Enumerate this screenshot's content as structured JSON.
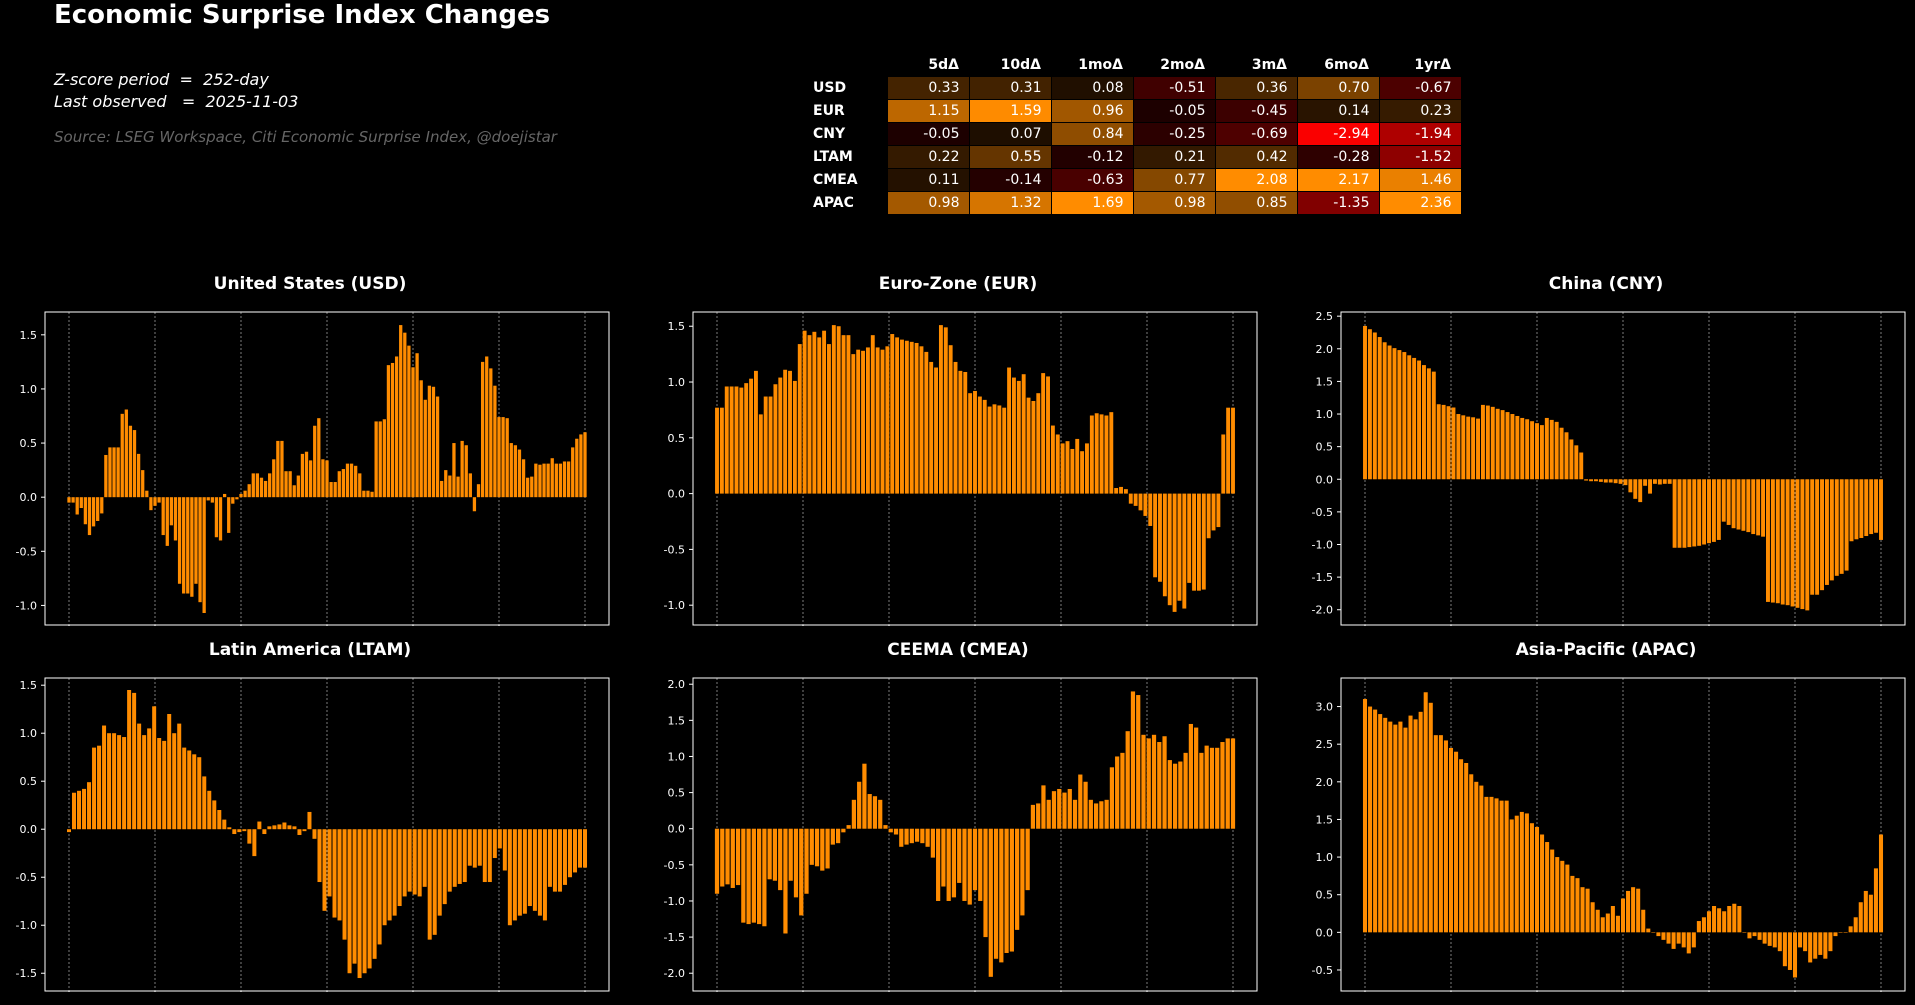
{
  "page": {
    "title": "Economic Surprise Index Changes",
    "meta_line1": "Z-score period  =  252-day",
    "meta_line2": "Last observed   =  2025-11-03",
    "source": "Source: LSEG Workspace, Citi Economic Surprise Index, @doejistar"
  },
  "colors": {
    "bar": "#ff8c00",
    "background": "#000000",
    "frame": "#ffffff",
    "grid": "#999999"
  },
  "table": {
    "columns": [
      "5dΔ",
      "10dΔ",
      "1moΔ",
      "2moΔ",
      "3mΔ",
      "6moΔ",
      "1yrΔ"
    ],
    "rows": [
      {
        "label": "USD",
        "values": [
          "0.33",
          "0.31",
          "0.08",
          "-0.51",
          "0.36",
          "0.70",
          "-0.67"
        ]
      },
      {
        "label": "EUR",
        "values": [
          "1.15",
          "1.59",
          "0.96",
          "-0.05",
          "-0.45",
          "0.14",
          "0.23"
        ]
      },
      {
        "label": "CNY",
        "values": [
          "-0.05",
          "0.07",
          "0.84",
          "-0.25",
          "-0.69",
          "-2.94",
          "-1.94"
        ]
      },
      {
        "label": "LTAM",
        "values": [
          "0.22",
          "0.55",
          "-0.12",
          "0.21",
          "0.42",
          "-0.28",
          "-1.52"
        ]
      },
      {
        "label": "CMEA",
        "values": [
          "0.11",
          "-0.14",
          "-0.63",
          "0.77",
          "2.08",
          "2.17",
          "1.46"
        ]
      },
      {
        "label": "APAC",
        "values": [
          "0.98",
          "1.32",
          "1.69",
          "0.98",
          "0.85",
          "-1.35",
          "2.36"
        ]
      }
    ]
  },
  "chart_data": [
    {
      "type": "bar",
      "title": "United States (USD)",
      "xlabel": "",
      "ylabel": "",
      "x_ticks": [
        "-126",
        "-105",
        "-84",
        "-63",
        "-42",
        "-21",
        "Last"
      ],
      "y_ticks": [
        -1.0,
        -0.5,
        0.0,
        0.5,
        1.0,
        1.5
      ],
      "ylim": [
        -1.07,
        1.6
      ],
      "grid": "x-dotted",
      "values": [
        -0.05,
        -0.05,
        -0.16,
        -0.1,
        -0.25,
        -0.35,
        -0.27,
        -0.22,
        -0.15,
        0.39,
        0.46,
        0.46,
        0.46,
        0.77,
        0.81,
        0.66,
        0.62,
        0.4,
        0.25,
        0.06,
        -0.12,
        -0.08,
        -0.05,
        -0.35,
        -0.45,
        -0.26,
        -0.4,
        -0.8,
        -0.89,
        -0.89,
        -0.92,
        -0.8,
        -0.97,
        -1.07,
        -0.03,
        -0.05,
        -0.37,
        -0.4,
        0.03,
        -0.33,
        -0.06,
        -0.02,
        0.03,
        0.06,
        0.12,
        0.22,
        0.22,
        0.18,
        0.15,
        0.22,
        0.35,
        0.52,
        0.52,
        0.24,
        0.24,
        0.11,
        0.2,
        0.4,
        0.42,
        0.34,
        0.66,
        0.73,
        0.35,
        0.34,
        0.14,
        0.14,
        0.24,
        0.26,
        0.31,
        0.31,
        0.29,
        0.22,
        0.06,
        0.06,
        0.05,
        0.7,
        0.7,
        0.72,
        1.22,
        1.24,
        1.3,
        1.59,
        1.52,
        1.4,
        1.2,
        1.33,
        1.08,
        0.9,
        1.03,
        1.02,
        0.93,
        0.15,
        0.25,
        0.2,
        0.5,
        0.19,
        0.52,
        0.48,
        0.22,
        -0.13,
        0.12,
        1.25,
        1.3,
        1.19,
        1.03,
        0.74,
        0.74,
        0.73,
        0.5,
        0.48,
        0.44,
        0.35,
        0.18,
        0.19,
        0.31,
        0.3,
        0.31,
        0.31,
        0.36,
        0.31,
        0.31,
        0.33,
        0.33,
        0.46,
        0.54,
        0.58,
        0.6
      ]
    },
    {
      "type": "bar",
      "title": "Euro-Zone (EUR)",
      "xlabel": "",
      "ylabel": "",
      "x_ticks": [
        "-126",
        "-105",
        "-84",
        "-63",
        "-42",
        "-21",
        "Last"
      ],
      "y_ticks": [
        -1.0,
        -0.5,
        0.0,
        0.5,
        1.0,
        1.5
      ],
      "ylim": [
        -1.07,
        1.52
      ],
      "grid": "x-dotted",
      "values": [
        0.77,
        0.77,
        0.96,
        0.96,
        0.96,
        0.95,
        0.99,
        1.03,
        1.1,
        0.71,
        0.87,
        0.87,
        0.98,
        1.04,
        1.11,
        1.1,
        1.01,
        1.34,
        1.46,
        1.42,
        1.45,
        1.4,
        1.46,
        1.34,
        1.51,
        1.5,
        1.42,
        1.42,
        1.25,
        1.29,
        1.28,
        1.31,
        1.42,
        1.31,
        1.29,
        1.32,
        1.43,
        1.4,
        1.38,
        1.37,
        1.36,
        1.35,
        1.32,
        1.27,
        1.18,
        1.13,
        1.51,
        1.49,
        1.33,
        1.18,
        1.1,
        1.09,
        0.9,
        0.92,
        0.87,
        0.84,
        0.78,
        0.8,
        0.79,
        0.77,
        1.13,
        1.04,
        1.01,
        1.07,
        0.86,
        0.83,
        0.9,
        1.08,
        1.05,
        0.61,
        0.53,
        0.45,
        0.47,
        0.4,
        0.49,
        0.38,
        0.45,
        0.7,
        0.72,
        0.71,
        0.7,
        0.73,
        0.05,
        0.06,
        0.04,
        -0.09,
        -0.11,
        -0.15,
        -0.2,
        -0.29,
        -0.75,
        -0.79,
        -0.92,
        -1.0,
        -1.06,
        -0.96,
        -1.03,
        -0.8,
        -0.87,
        -0.87,
        -0.86,
        -0.4,
        -0.33,
        -0.3,
        0.53,
        0.77,
        0.77
      ]
    },
    {
      "type": "bar",
      "title": "China (CNY)",
      "xlabel": "",
      "ylabel": "",
      "x_ticks": [
        "-126",
        "-105",
        "-84",
        "-63",
        "-42",
        "-21",
        "Last"
      ],
      "y_ticks": [
        -2.0,
        -1.5,
        -1.0,
        -0.5,
        0.0,
        0.5,
        1.0,
        1.5,
        2.0,
        2.5
      ],
      "ylim": [
        -2.05,
        2.38
      ],
      "grid": "x-dotted",
      "values": [
        2.35,
        2.3,
        2.25,
        2.18,
        2.1,
        2.05,
        2.01,
        1.98,
        1.95,
        1.9,
        1.86,
        1.82,
        1.75,
        1.7,
        1.65,
        1.15,
        1.14,
        1.12,
        1.1,
        1.0,
        0.98,
        0.96,
        0.95,
        0.93,
        1.14,
        1.13,
        1.11,
        1.08,
        1.06,
        1.03,
        1.0,
        0.97,
        0.94,
        0.92,
        0.89,
        0.86,
        0.83,
        0.94,
        0.91,
        0.88,
        0.79,
        0.72,
        0.61,
        0.52,
        0.41,
        -0.02,
        -0.03,
        -0.03,
        -0.04,
        -0.05,
        -0.05,
        -0.06,
        -0.07,
        -0.09,
        -0.2,
        -0.3,
        -0.35,
        -0.1,
        -0.22,
        -0.07,
        -0.08,
        -0.07,
        -0.07,
        -1.05,
        -1.05,
        -1.05,
        -1.04,
        -1.03,
        -1.02,
        -1.0,
        -0.98,
        -0.96,
        -0.93,
        -0.65,
        -0.7,
        -0.75,
        -0.77,
        -0.79,
        -0.81,
        -0.84,
        -0.86,
        -0.88,
        -1.88,
        -1.89,
        -1.9,
        -1.92,
        -1.93,
        -1.95,
        -1.97,
        -1.99,
        -2.01,
        -1.77,
        -1.77,
        -1.7,
        -1.62,
        -1.55,
        -1.48,
        -1.45,
        -1.4,
        -0.95,
        -0.92,
        -0.9,
        -0.87,
        -0.84,
        -0.82,
        -0.93
      ]
    },
    {
      "type": "bar",
      "title": "Latin America (LTAM)",
      "xlabel": "",
      "ylabel": "",
      "x_ticks": [
        "-126",
        "-105",
        "-84",
        "-63",
        "-42",
        "-21",
        "Last"
      ],
      "y_ticks": [
        -1.5,
        -1.0,
        -0.5,
        0.0,
        0.5,
        1.0,
        1.5
      ],
      "ylim": [
        -1.56,
        1.45
      ],
      "grid": "x-dotted",
      "values": [
        -0.03,
        0.38,
        0.4,
        0.42,
        0.49,
        0.85,
        0.87,
        1.08,
        1.0,
        1.0,
        0.98,
        0.96,
        1.45,
        1.42,
        1.1,
        0.98,
        1.05,
        1.28,
        0.95,
        0.92,
        1.2,
        1.0,
        1.1,
        0.85,
        0.82,
        0.78,
        0.75,
        0.55,
        0.4,
        0.3,
        0.2,
        0.1,
        0.02,
        -0.05,
        -0.03,
        -0.02,
        -0.15,
        -0.28,
        0.08,
        -0.05,
        0.03,
        0.04,
        0.05,
        0.07,
        0.04,
        0.03,
        -0.06,
        -0.02,
        0.18,
        -0.1,
        -0.55,
        -0.85,
        -0.7,
        -0.92,
        -0.95,
        -1.15,
        -1.5,
        -1.4,
        -1.55,
        -1.5,
        -1.45,
        -1.35,
        -1.2,
        -1.0,
        -0.95,
        -0.9,
        -0.8,
        -0.7,
        -0.65,
        -0.68,
        -0.7,
        -0.6,
        -1.15,
        -1.1,
        -0.9,
        -0.78,
        -0.65,
        -0.6,
        -0.57,
        -0.55,
        -0.38,
        -0.4,
        -0.38,
        -0.55,
        -0.55,
        -0.3,
        -0.2,
        -0.43,
        -1.0,
        -0.95,
        -0.9,
        -0.88,
        -0.8,
        -0.85,
        -0.9,
        -0.95,
        -0.6,
        -0.65,
        -0.65,
        -0.58,
        -0.5,
        -0.45,
        -0.4,
        -0.4
      ]
    },
    {
      "type": "bar",
      "title": "CEEMA (CMEA)",
      "xlabel": "",
      "ylabel": "",
      "x_ticks": [
        "-126",
        "-105",
        "-84",
        "-63",
        "-42",
        "-21",
        "Last"
      ],
      "y_ticks": [
        -2.0,
        -1.5,
        -1.0,
        -0.5,
        0.0,
        0.5,
        1.0,
        1.5,
        2.0
      ],
      "ylim": [
        -2.08,
        1.92
      ],
      "grid": "x-dotted",
      "values": [
        -0.9,
        -0.8,
        -0.77,
        -0.82,
        -0.78,
        -1.3,
        -1.32,
        -1.3,
        -1.32,
        -1.35,
        -0.7,
        -0.72,
        -0.85,
        -1.45,
        -0.72,
        -0.95,
        -1.2,
        -0.9,
        -0.5,
        -0.52,
        -0.58,
        -0.55,
        -0.22,
        -0.2,
        -0.05,
        0.05,
        0.4,
        0.65,
        0.9,
        0.48,
        0.45,
        0.4,
        0.05,
        -0.05,
        -0.08,
        -0.25,
        -0.22,
        -0.2,
        -0.18,
        -0.2,
        -0.25,
        -0.4,
        -1.0,
        -0.8,
        -1.0,
        -0.95,
        -0.75,
        -1.0,
        -1.05,
        -0.85,
        -1.0,
        -1.5,
        -2.05,
        -1.8,
        -1.85,
        -1.72,
        -1.7,
        -1.4,
        -1.2,
        -0.85,
        0.33,
        0.35,
        0.6,
        0.4,
        0.52,
        0.55,
        0.5,
        0.55,
        0.4,
        0.75,
        0.65,
        0.4,
        0.35,
        0.38,
        0.4,
        0.85,
        1.0,
        1.05,
        1.35,
        1.9,
        1.85,
        1.3,
        1.25,
        1.3,
        1.2,
        1.28,
        0.95,
        0.9,
        0.93,
        1.05,
        1.45,
        1.4,
        1.05,
        1.15,
        1.12,
        1.12,
        1.2,
        1.25,
        1.25
      ]
    },
    {
      "type": "bar",
      "title": "Asia-Pacific (APAC)",
      "xlabel": "",
      "ylabel": "",
      "x_ticks": [
        "-126",
        "-105",
        "-84",
        "-63",
        "-42",
        "-21",
        "Last"
      ],
      "y_ticks": [
        -0.5,
        0.0,
        0.5,
        1.0,
        1.5,
        2.0,
        2.5,
        3.0
      ],
      "ylim": [
        -0.62,
        3.22
      ],
      "grid": "x-dotted",
      "values": [
        3.1,
        3.0,
        2.96,
        2.9,
        2.85,
        2.8,
        2.76,
        2.8,
        2.72,
        2.88,
        2.83,
        2.93,
        3.19,
        3.05,
        2.62,
        2.62,
        2.55,
        2.45,
        2.4,
        2.3,
        2.25,
        2.1,
        2.0,
        1.95,
        1.8,
        1.8,
        1.78,
        1.75,
        1.75,
        1.5,
        1.55,
        1.6,
        1.58,
        1.45,
        1.4,
        1.3,
        1.2,
        1.1,
        1.0,
        0.95,
        0.9,
        0.75,
        0.72,
        0.6,
        0.58,
        0.4,
        0.3,
        0.2,
        0.25,
        0.35,
        0.22,
        0.45,
        0.55,
        0.6,
        0.58,
        0.3,
        0.05,
        0.0,
        -0.05,
        -0.1,
        -0.15,
        -0.22,
        -0.15,
        -0.2,
        -0.28,
        -0.2,
        0.15,
        0.2,
        0.28,
        0.35,
        0.32,
        0.28,
        0.35,
        0.38,
        0.35,
        0.0,
        -0.08,
        -0.05,
        -0.1,
        -0.15,
        -0.18,
        -0.2,
        -0.25,
        -0.45,
        -0.5,
        -0.6,
        -0.2,
        -0.25,
        -0.4,
        -0.35,
        -0.3,
        -0.35,
        -0.25,
        -0.05,
        0.0,
        0.0,
        0.08,
        0.2,
        0.4,
        0.55,
        0.5,
        0.85,
        1.3
      ]
    }
  ]
}
